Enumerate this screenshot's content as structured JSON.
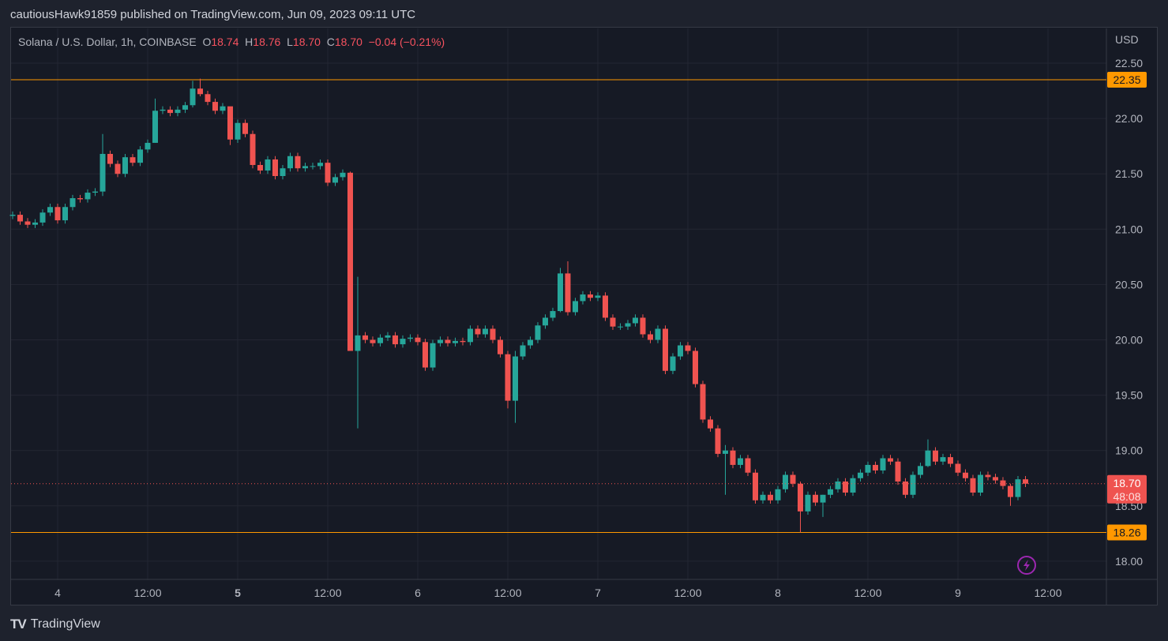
{
  "publish_line": "cautiousHawk91859 published on TradingView.com, Jun 09, 2023 09:11 UTC",
  "legend": {
    "symbol": "Solana / U.S. Dollar, 1h, COINBASE",
    "o_label": "O",
    "o": "18.74",
    "h_label": "H",
    "h": "18.76",
    "l_label": "L",
    "l": "18.70",
    "c_label": "C",
    "c": "18.70",
    "change": "−0.04 (−0.21%)"
  },
  "currency": "USD",
  "footer_logo": "TradingView",
  "colors": {
    "up": "#26a69a",
    "down": "#ef5350",
    "level": "#ff9800",
    "bg": "#161a25",
    "grid": "#232632"
  },
  "price_tag": {
    "price": "18.70",
    "countdown": "48:08"
  },
  "levels": [
    {
      "value": 22.35,
      "label": "22.35"
    },
    {
      "value": 18.26,
      "label": "18.26"
    }
  ],
  "chart_data": {
    "type": "candlestick",
    "interval": "1h",
    "first_candle": "Jun 3 18:00",
    "ylim": [
      17.82,
      22.83
    ],
    "y_ticks": [
      "22.50",
      "22.00",
      "21.50",
      "21.00",
      "20.50",
      "20.00",
      "19.50",
      "19.00",
      "18.50",
      "18.00"
    ],
    "x_ticks": [
      {
        "label": "4",
        "hour": 6,
        "bold": false
      },
      {
        "label": "12:00",
        "hour": 18
      },
      {
        "label": "5",
        "hour": 30,
        "bold": true
      },
      {
        "label": "12:00",
        "hour": 42
      },
      {
        "label": "6",
        "hour": 54
      },
      {
        "label": "12:00",
        "hour": 66
      },
      {
        "label": "7",
        "hour": 78
      },
      {
        "label": "12:00",
        "hour": 90
      },
      {
        "label": "8",
        "hour": 102
      },
      {
        "label": "12:00",
        "hour": 114
      },
      {
        "label": "9",
        "hour": 126
      },
      {
        "label": "12:00",
        "hour": 138
      }
    ],
    "first_open": 21.12,
    "closes": [
      21.13,
      21.07,
      21.04,
      21.06,
      21.15,
      21.2,
      21.08,
      21.2,
      21.28,
      21.27,
      21.33,
      21.34,
      21.68,
      21.59,
      21.5,
      21.65,
      21.6,
      21.72,
      21.78,
      22.07,
      22.08,
      22.05,
      22.08,
      22.12,
      22.27,
      22.22,
      22.15,
      22.07,
      22.11,
      21.81,
      21.96,
      21.86,
      21.58,
      21.53,
      21.63,
      21.48,
      21.55,
      21.66,
      21.55,
      21.57,
      21.57,
      21.6,
      21.42,
      21.47,
      21.51,
      19.9,
      20.04,
      20.0,
      19.97,
      20.02,
      20.04,
      19.96,
      20.01,
      20.02,
      19.98,
      19.75,
      19.97,
      20.0,
      19.97,
      19.99,
      19.98,
      20.1,
      20.05,
      20.1,
      20.0,
      19.87,
      19.45,
      19.85,
      19.95,
      20.0,
      20.13,
      20.2,
      20.26,
      20.6,
      20.25,
      20.35,
      20.41,
      20.38,
      20.4,
      20.2,
      20.12,
      20.12,
      20.15,
      20.2,
      20.05,
      20.0,
      20.1,
      19.72,
      19.85,
      19.95,
      19.9,
      19.6,
      19.28,
      19.2,
      18.97,
      19.0,
      18.87,
      18.93,
      18.8,
      18.55,
      18.6,
      18.55,
      18.65,
      18.78,
      18.7,
      18.45,
      18.6,
      18.53,
      18.6,
      18.65,
      18.72,
      18.62,
      18.75,
      18.8,
      18.87,
      18.82,
      18.93,
      18.9,
      18.72,
      18.6,
      18.78,
      18.86,
      19.0,
      18.9,
      18.94,
      18.88,
      18.8,
      18.75,
      18.62,
      18.78,
      18.76,
      18.73,
      18.68,
      18.58,
      18.74,
      18.7
    ],
    "wick_overrides": {
      "12": [
        21.86,
        21.3
      ],
      "19": [
        22.18,
        21.78
      ],
      "24": [
        22.34,
        22.1
      ],
      "25": [
        22.36,
        22.2
      ],
      "29": [
        22.05,
        21.76
      ],
      "45": [
        21.52,
        19.9
      ],
      "46": [
        20.57,
        19.2
      ],
      "66": [
        19.9,
        19.38
      ],
      "67": [
        19.9,
        19.25
      ],
      "73": [
        20.65,
        20.25
      ],
      "74": [
        20.71,
        20.22
      ],
      "95": [
        19.05,
        18.6
      ],
      "105": [
        18.72,
        18.26
      ],
      "108": [
        18.6,
        18.4
      ],
      "122": [
        19.1,
        18.85
      ],
      "133": [
        18.7,
        18.5
      ]
    }
  }
}
